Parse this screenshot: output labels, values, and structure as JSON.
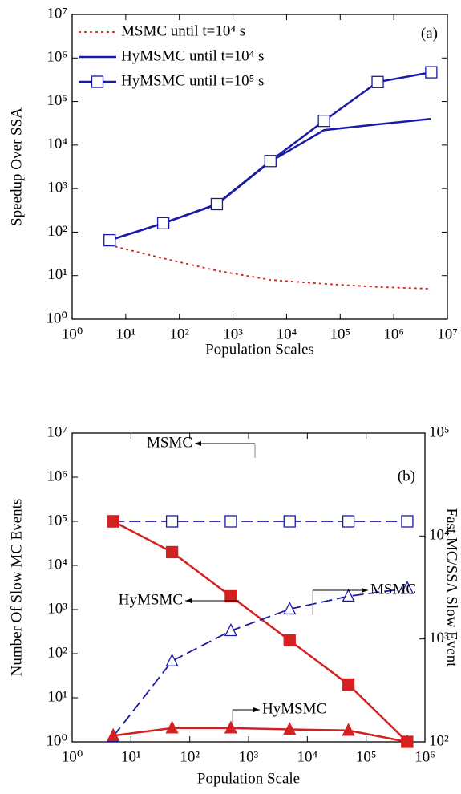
{
  "chart_data": [
    {
      "type": "line",
      "xlabel": "Population Scales",
      "ylabel": "Speedup Over SSA",
      "annotation": "(a)",
      "xscale": "log",
      "yscale": "log",
      "legend": "upper left",
      "xlim": [
        1,
        10000000
      ],
      "ylim": [
        1,
        10000000
      ],
      "xticks": [
        {
          "value": 1,
          "label": "10⁰"
        },
        {
          "value": 10,
          "label": "10¹"
        },
        {
          "value": 100,
          "label": "10²"
        },
        {
          "value": 1000,
          "label": "10³"
        },
        {
          "value": 10000,
          "label": "10⁴"
        },
        {
          "value": 100000,
          "label": "10⁵"
        },
        {
          "value": 1000000,
          "label": "10⁶"
        },
        {
          "value": 10000000,
          "label": "10⁷"
        }
      ],
      "yticks": [
        {
          "value": 1,
          "label": "10⁰"
        },
        {
          "value": 10,
          "label": "10¹"
        },
        {
          "value": 100,
          "label": "10²"
        },
        {
          "value": 1000,
          "label": "10³"
        },
        {
          "value": 10000,
          "label": "10⁴"
        },
        {
          "value": 100000,
          "label": "10⁵"
        },
        {
          "value": 1000000,
          "label": "10⁶"
        },
        {
          "value": 10000000,
          "label": "10⁷"
        }
      ],
      "x": [
        5,
        50,
        500,
        5000,
        50000,
        500000,
        5000000
      ],
      "series": [
        {
          "name": "MSMC until t=10⁴ s",
          "color": "#d42020",
          "linestyle": "dotted",
          "marker": "none",
          "values": [
            50,
            25,
            13,
            8,
            6.5,
            5.5,
            5
          ]
        },
        {
          "name": "HyMSMC until t=10⁴ s",
          "color": "#1a1aa8",
          "linestyle": "solid",
          "marker": "none",
          "values": [
            65,
            160,
            430,
            4200,
            22000,
            30000,
            40000
          ]
        },
        {
          "name": "HyMSMC until t=10⁵ s",
          "color": "#1a1aa8",
          "linestyle": "solid",
          "marker": "square",
          "values": [
            65,
            160,
            440,
            4300,
            36000,
            280000,
            470000
          ]
        }
      ]
    },
    {
      "type": "line",
      "xlabel": "Population Scale",
      "ylabel": "Number Of Slow MC Events",
      "y2label": "Fast MC/SSA Slow Event",
      "annotation": "(b)",
      "xscale": "log",
      "yscale": "log",
      "legend": "none",
      "xlim": [
        1,
        1000000
      ],
      "ylim": [
        1,
        10000000
      ],
      "y2lim": [
        100,
        100000
      ],
      "xticks": [
        {
          "value": 1,
          "label": "10⁰"
        },
        {
          "value": 10,
          "label": "10¹"
        },
        {
          "value": 100,
          "label": "10²"
        },
        {
          "value": 1000,
          "label": "10³"
        },
        {
          "value": 10000,
          "label": "10⁴"
        },
        {
          "value": 100000,
          "label": "10⁵"
        },
        {
          "value": 1000000,
          "label": "10⁶"
        }
      ],
      "yticks": [
        {
          "value": 1,
          "label": "10⁰"
        },
        {
          "value": 10,
          "label": "10¹"
        },
        {
          "value": 100,
          "label": "10²"
        },
        {
          "value": 1000,
          "label": "10³"
        },
        {
          "value": 10000,
          "label": "10⁴"
        },
        {
          "value": 100000,
          "label": "10⁵"
        },
        {
          "value": 1000000,
          "label": "10⁶"
        },
        {
          "value": 10000000,
          "label": "10⁷"
        }
      ],
      "y2ticks": [
        {
          "value": 100,
          "label": "10²"
        },
        {
          "value": 1000,
          "label": "10³"
        },
        {
          "value": 10000,
          "label": "10⁴"
        },
        {
          "value": 100000,
          "label": "10⁵"
        }
      ],
      "x": [
        5,
        50,
        500,
        5000,
        50000,
        500000
      ],
      "series": [
        {
          "name": "MSMC",
          "color": "#1a1aa8",
          "linestyle": "dashed",
          "marker": "square",
          "values": [
            100000,
            100000,
            100000,
            100000,
            100000,
            100000
          ]
        },
        {
          "name": "HyMSMC",
          "color": "#d42020",
          "linestyle": "solid",
          "marker": "filled-square",
          "values": [
            100000,
            20000,
            2000,
            200,
            20,
            1
          ]
        },
        {
          "name": "MSMC",
          "color": "#1a1aa8",
          "linestyle": "dashed",
          "marker": "triangle",
          "axis": "y2",
          "values": [
            113,
            610,
            1200,
            1950,
            2600,
            3100
          ]
        },
        {
          "name": "HyMSMC",
          "color": "#d42020",
          "linestyle": "solid",
          "marker": "filled-triangle",
          "axis": "y2",
          "values": [
            115,
            136,
            136,
            132,
            129,
            100
          ]
        }
      ]
    }
  ]
}
